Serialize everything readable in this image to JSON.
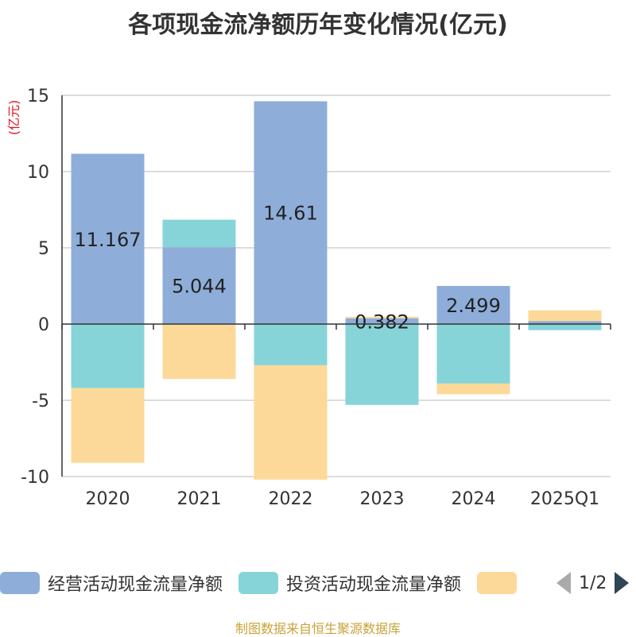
{
  "title": "各项现金流净额历年变化情况(亿元)",
  "source_note": "制图数据来自恒生聚源数据库",
  "pager": {
    "text": "1/2"
  },
  "colors": {
    "operating": "#8eaed9",
    "investing": "#86d4d8",
    "financing": "#fdd999"
  },
  "chart_data": {
    "type": "bar",
    "stacked": true,
    "title": "各项现金流净额历年变化情况(亿元)",
    "ylabel": "(亿元)",
    "ylim": [
      -10,
      15
    ],
    "yticks": [
      15,
      10,
      5,
      0,
      -5,
      -10
    ],
    "grid": true,
    "legend_position": "bottom",
    "categories": [
      "2020",
      "2021",
      "2022",
      "2023",
      "2024",
      "2025Q1"
    ],
    "series": [
      {
        "name": "经营活动现金流量净额",
        "values": [
          11.167,
          5.044,
          14.61,
          0.382,
          2.499,
          0.2
        ],
        "labels": [
          "11.167",
          "5.044",
          "14.61",
          "0.382",
          "2.499",
          ""
        ]
      },
      {
        "name": "投资活动现金流量净额",
        "values": [
          -4.2,
          1.8,
          -2.7,
          -5.3,
          -3.9,
          -0.4
        ]
      },
      {
        "name": "",
        "values": [
          -4.9,
          -3.6,
          -7.5,
          0.1,
          -0.7,
          0.7
        ]
      }
    ]
  }
}
